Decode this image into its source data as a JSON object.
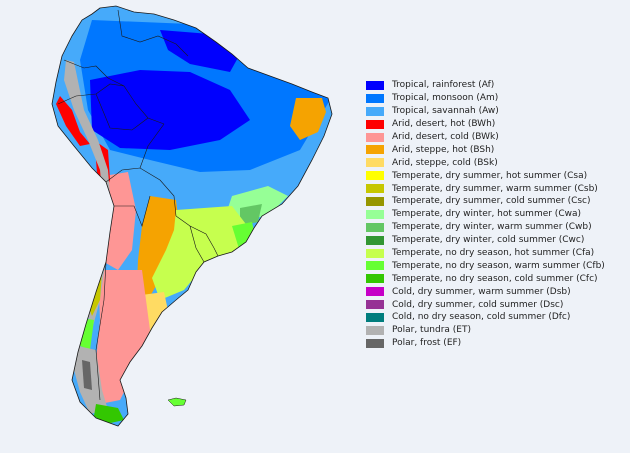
{
  "legend": [
    {
      "label": "Tropical, rainforest (Af)",
      "color": "#0000fe"
    },
    {
      "label": "Tropical, monsoon (Am)",
      "color": "#0077ff"
    },
    {
      "label": "Tropical, savannah (Aw)",
      "color": "#46aafa"
    },
    {
      "label": "Arid, desert, hot (BWh)",
      "color": "#fe0000"
    },
    {
      "label": "Arid, desert, cold (BWk)",
      "color": "#fe9695"
    },
    {
      "label": "Arid, steppe, hot (BSh)",
      "color": "#f5a301"
    },
    {
      "label": "Arid, steppe, cold (BSk)",
      "color": "#ffdb63"
    },
    {
      "label": "Temperate, dry summer, hot summer (Csa)",
      "color": "#ffff00"
    },
    {
      "label": "Temperate, dry summer, warm summer (Csb)",
      "color": "#c6c700"
    },
    {
      "label": "Temperate, dry summer, cold summer (Csc)",
      "color": "#969600"
    },
    {
      "label": "Temperate, dry winter, hot summer (Cwa)",
      "color": "#96ff96"
    },
    {
      "label": "Temperate, dry winter, warm summer (Cwb)",
      "color": "#63c764"
    },
    {
      "label": "Temperate, dry winter, cold summer (Cwc)",
      "color": "#329633"
    },
    {
      "label": "Temperate, no dry season, hot summer (Cfa)",
      "color": "#c6ff4e"
    },
    {
      "label": "Temperate, no dry season, warm summer (Cfb)",
      "color": "#66ff33"
    },
    {
      "label": "Temperate, no dry season, cold summer (Cfc)",
      "color": "#33c701"
    },
    {
      "label": "Cold, dry summer, warm summer (Dsb)",
      "color": "#c600c7"
    },
    {
      "label": "Cold, dry summer, cold summer (Dsc)",
      "color": "#963295"
    },
    {
      "label": "Cold, no dry season, cold summer (Dfc)",
      "color": "#007d7d"
    },
    {
      "label": "Polar, tundra (ET)",
      "color": "#b2b2b2"
    },
    {
      "label": "Polar, frost (EF)",
      "color": "#666666"
    }
  ],
  "colors": {
    "background": "#eef2f8",
    "border": "#1a1a1a"
  }
}
